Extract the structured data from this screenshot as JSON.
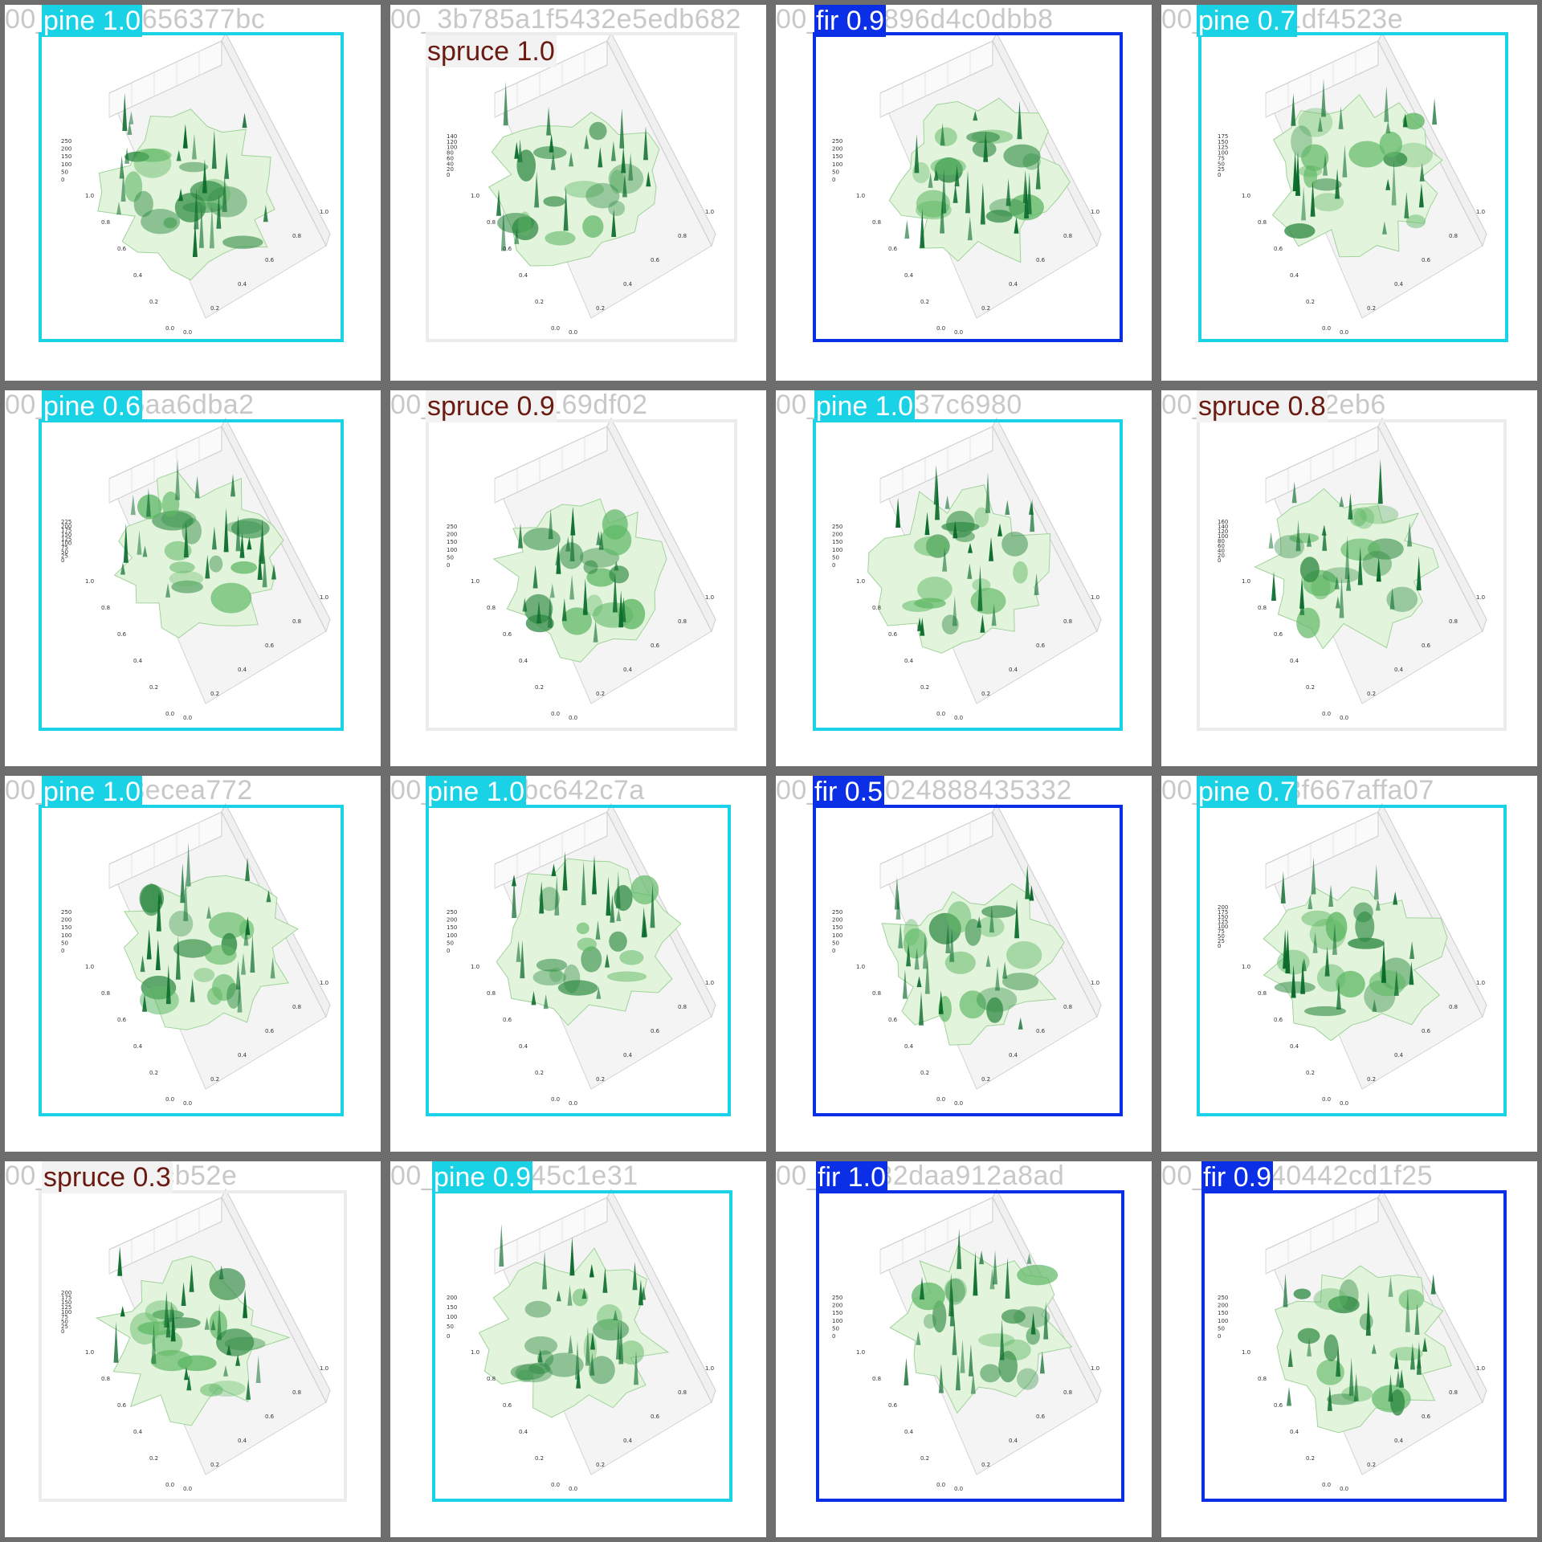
{
  "colors": {
    "pine": "#1ad2e6",
    "fir": "#0a2fe6",
    "spruce_box": "#ececec",
    "spruce_label_bg": "#f2f2f2",
    "spruce_text": "#6a1a10",
    "label_text_light": "#ffffff",
    "hash_text": "#c8c8c8",
    "tile_separator": "#6e6e6e",
    "surface_light": "#e3f4dc",
    "surface_dark": "#0b6b2c"
  },
  "tiles": [
    {
      "filename": "00_f1511fc656377bc",
      "class": "pine",
      "score": "1.0",
      "display": "pine 1.0",
      "zticks": [
        "250",
        "200",
        "150",
        "100",
        "50",
        "0"
      ]
    },
    {
      "filename": "00_3b785a1f5432e5edb682",
      "class": "spruce",
      "score": "1.0",
      "display": "spruce 1.0",
      "zticks": [
        "140",
        "120",
        "100",
        "80",
        "60",
        "40",
        "20",
        "0"
      ]
    },
    {
      "filename": "00_c9b4896d4c0dbb8",
      "class": "fir",
      "score": "0.9",
      "display": "fir 0.9",
      "zticks": [
        "250",
        "200",
        "150",
        "100",
        "50",
        "0"
      ]
    },
    {
      "filename": "00_5e0641df4523e",
      "class": "pine",
      "score": "0.7",
      "display": "pine 0.7",
      "zticks": [
        "175",
        "150",
        "125",
        "100",
        "75",
        "50",
        "25",
        "0"
      ]
    },
    {
      "filename": "00_e67a15aa6dba2",
      "class": "pine",
      "score": "0.6",
      "display": "pine 0.6",
      "zticks": [
        "225",
        "200",
        "175",
        "150",
        "125",
        "100",
        "75",
        "50",
        "25",
        "0"
      ]
    },
    {
      "filename": "00_2539105169df02",
      "class": "spruce",
      "score": "0.9",
      "display": "spruce 0.9",
      "zticks": [
        "250",
        "200",
        "150",
        "100",
        "50",
        "0"
      ]
    },
    {
      "filename": "00_c5773d37c6980",
      "class": "pine",
      "score": "1.0",
      "display": "pine 1.0",
      "zticks": [
        "250",
        "200",
        "150",
        "100",
        "50",
        "0"
      ]
    },
    {
      "filename": "00_fd28cda92eb6",
      "class": "spruce",
      "score": "0.8",
      "display": "spruce 0.8",
      "zticks": [
        "160",
        "140",
        "120",
        "100",
        "80",
        "60",
        "40",
        "20",
        "0"
      ]
    },
    {
      "filename": "00_7e91e8ecea772",
      "class": "pine",
      "score": "1.0",
      "display": "pine 1.0",
      "zticks": [
        "250",
        "200",
        "150",
        "100",
        "50",
        "0"
      ]
    },
    {
      "filename": "00_6f0919bc642c7a",
      "class": "pine",
      "score": "1.0",
      "display": "pine 1.0",
      "zticks": [
        "250",
        "200",
        "150",
        "100",
        "50",
        "0"
      ]
    },
    {
      "filename": "00_5265024888435332",
      "class": "fir",
      "score": "0.5",
      "display": "fir 0.5",
      "zticks": [
        "250",
        "200",
        "150",
        "100",
        "50",
        "0"
      ]
    },
    {
      "filename": "00_3572d3f667affa07",
      "class": "pine",
      "score": "0.7",
      "display": "pine 0.7",
      "zticks": [
        "200",
        "175",
        "150",
        "125",
        "100",
        "75",
        "50",
        "25",
        "0"
      ]
    },
    {
      "filename": "00_21d72edcb52e",
      "class": "spruce",
      "score": "0.3",
      "display": "spruce 0.3",
      "zticks": [
        "200",
        "175",
        "150",
        "125",
        "100",
        "75",
        "50",
        "25",
        "0"
      ]
    },
    {
      "filename": "00_8091ad45c1e31",
      "class": "pine",
      "score": "0.9",
      "display": "pine 0.9",
      "zticks": [
        "200",
        "150",
        "100",
        "50",
        "0"
      ]
    },
    {
      "filename": "00_fb3432daa912a8ad",
      "class": "fir",
      "score": "1.0",
      "display": "fir 1.0",
      "zticks": [
        "250",
        "200",
        "150",
        "100",
        "50",
        "0"
      ]
    },
    {
      "filename": "00_a12b40442cd1f25",
      "class": "fir",
      "score": "0.9",
      "display": "fir 0.9",
      "zticks": [
        "250",
        "200",
        "150",
        "100",
        "50",
        "0"
      ]
    }
  ],
  "xy_ticks": {
    "y_axis": [
      "1.0",
      "0.8",
      "0.6",
      "0.4",
      "0.2",
      "0.0"
    ],
    "x_axis": [
      "0.0",
      "0.2",
      "0.4",
      "0.6",
      "0.8",
      "1.0"
    ]
  }
}
